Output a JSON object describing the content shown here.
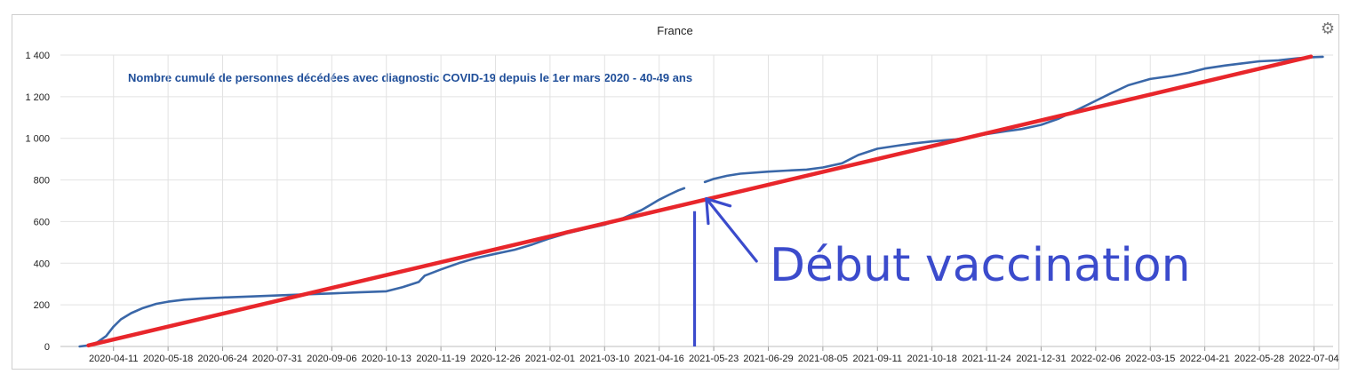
{
  "chart_data": {
    "type": "line",
    "title": "France",
    "subtitle": "Nombre cumulé de personnes décédées avec diagnostic COVID-19 depuis le 1er mars 2020 - 40-49 ans",
    "xlabel": "",
    "ylabel": "",
    "ylim": [
      0,
      1400
    ],
    "xlim": [
      "2020-03-06",
      "2022-07-17"
    ],
    "grid": true,
    "legend": "none",
    "y_ticks": [
      0,
      200,
      400,
      600,
      800,
      1000,
      1200,
      1400
    ],
    "y_tick_labels": [
      "0",
      "200",
      "400",
      "600",
      "800",
      "1 000",
      "1 200",
      "1 400"
    ],
    "x_ticks": [
      "2020-04-11",
      "2020-05-18",
      "2020-06-24",
      "2020-07-31",
      "2020-09-06",
      "2020-10-13",
      "2020-11-19",
      "2020-12-26",
      "2021-02-01",
      "2021-03-10",
      "2021-04-16",
      "2021-05-23",
      "2021-06-29",
      "2021-08-05",
      "2021-09-11",
      "2021-10-18",
      "2021-11-24",
      "2021-12-31",
      "2022-02-06",
      "2022-03-15",
      "2022-04-21",
      "2022-05-28",
      "2022-07-04"
    ],
    "series": [
      {
        "color": "#3a67a8",
        "segments": [
          {
            "x": [
              "2020-03-19",
              "2020-03-25",
              "2020-03-31",
              "2020-04-06",
              "2020-04-11",
              "2020-04-16",
              "2020-04-23",
              "2020-05-01",
              "2020-05-10",
              "2020-05-18",
              "2020-05-29",
              "2020-06-09",
              "2020-06-24",
              "2020-07-12",
              "2020-07-31",
              "2020-08-18",
              "2020-09-06",
              "2020-09-24",
              "2020-10-13",
              "2020-10-24",
              "2020-11-04",
              "2020-11-08",
              "2020-11-19",
              "2020-12-01",
              "2020-12-13",
              "2020-12-26",
              "2021-01-08",
              "2021-01-20",
              "2021-02-01",
              "2021-02-13",
              "2021-02-25",
              "2021-03-10",
              "2021-03-22",
              "2021-04-04",
              "2021-04-10",
              "2021-04-16",
              "2021-04-23",
              "2021-04-29",
              "2021-05-03"
            ],
            "y": [
              0,
              5,
              20,
              50,
              95,
              130,
              160,
              185,
              205,
              215,
              225,
              230,
              235,
              240,
              245,
              250,
              255,
              260,
              265,
              285,
              310,
              340,
              370,
              400,
              425,
              445,
              465,
              490,
              520,
              545,
              565,
              585,
              615,
              655,
              680,
              705,
              730,
              750,
              760
            ]
          },
          {
            "x": [
              "2021-05-17",
              "2021-05-23",
              "2021-06-01",
              "2021-06-10",
              "2021-06-29",
              "2021-07-12",
              "2021-07-25",
              "2021-08-05",
              "2021-08-18",
              "2021-08-29",
              "2021-09-11",
              "2021-09-25",
              "2021-10-05",
              "2021-10-18",
              "2021-11-03",
              "2021-11-12",
              "2021-11-24",
              "2021-12-08",
              "2021-12-18",
              "2021-12-31",
              "2022-01-12",
              "2022-01-24",
              "2022-02-06",
              "2022-02-16",
              "2022-02-28",
              "2022-03-15",
              "2022-03-30",
              "2022-04-10",
              "2022-04-21",
              "2022-05-05",
              "2022-05-16",
              "2022-05-28",
              "2022-06-10",
              "2022-06-23",
              "2022-07-04",
              "2022-07-10"
            ],
            "y": [
              790,
              805,
              820,
              830,
              840,
              845,
              850,
              860,
              880,
              920,
              950,
              965,
              975,
              985,
              995,
              1005,
              1020,
              1035,
              1045,
              1065,
              1095,
              1135,
              1180,
              1215,
              1255,
              1285,
              1300,
              1315,
              1335,
              1350,
              1360,
              1370,
              1375,
              1385,
              1390,
              1392
            ]
          }
        ]
      }
    ],
    "overlays": {
      "trend_line": {
        "color": "#e8262b",
        "x": [
          "2020-03-25",
          "2022-07-02"
        ],
        "y": [
          5,
          1393
        ]
      },
      "vertical_marker": {
        "color": "#3b4bcc",
        "x": "2021-05-10",
        "y_range": [
          0,
          650
        ]
      },
      "arrow": {
        "color": "#3b4bcc",
        "from": [
          "2021-06-21",
          410
        ],
        "to": [
          "2021-05-18",
          710
        ]
      },
      "annotation": "Début vaccination"
    }
  }
}
